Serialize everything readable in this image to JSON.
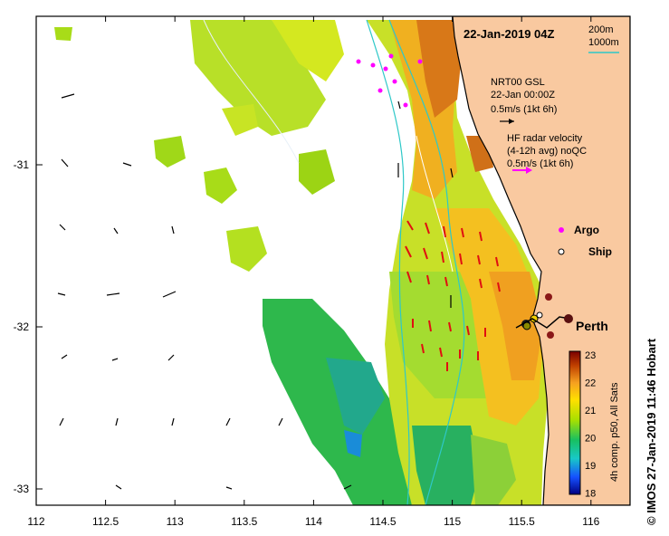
{
  "map": {
    "datetime": "22-Jan-2019 04Z",
    "isobaths": [
      "200m",
      "1000m"
    ],
    "isobath_color": "#2ec8c8",
    "land_color": "#f9c9a0",
    "places": [
      {
        "name": "Perth"
      }
    ]
  },
  "legend": {
    "current_title": "NRT00 GSL",
    "current_time": "22-Jan 00:00Z",
    "current_scale": "0.5m/s (1kt 6h)",
    "current_color": "#000000",
    "radar_title": "HF radar velocity",
    "radar_avg": "(4-12h avg) noQC",
    "radar_scale": "0.5m/s (1kt 6h)",
    "radar_color": "#ff00ff",
    "argo_label": "Argo",
    "ship_label": "Ship"
  },
  "axes": {
    "x_ticks": [
      "112",
      "112.5",
      "113",
      "113.5",
      "114",
      "114.5",
      "115",
      "115.5",
      "116"
    ],
    "y_ticks": [
      "-31",
      "-32",
      "-33"
    ]
  },
  "colorbar": {
    "ticks": [
      "23",
      "22",
      "21",
      "20",
      "19",
      "18"
    ],
    "label": "4h comp. p50, All Sats",
    "vmin": 18,
    "vmax": 23,
    "stops": [
      "#000080",
      "#1550ff",
      "#18c8c8",
      "#18c060",
      "#a8e000",
      "#ffe000",
      "#f5a020",
      "#c04000",
      "#7a0000"
    ]
  },
  "credit": "© IMOS 27-Jan-2019 11:46 Hobart"
}
